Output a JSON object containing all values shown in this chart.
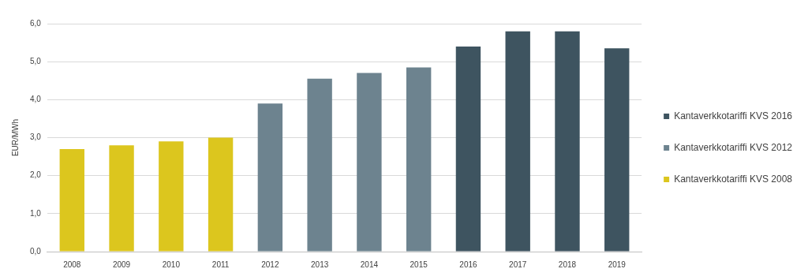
{
  "chart_data": {
    "type": "bar",
    "ylabel": "EUR/MWh",
    "categories": [
      "2008",
      "2009",
      "2010",
      "2011",
      "2012",
      "2013",
      "2014",
      "2015",
      "2016",
      "2017",
      "2018",
      "2019"
    ],
    "series": [
      {
        "name": "Kantaverkkotariffi KVS 2008",
        "color": "#dcc61e",
        "values": [
          2.7,
          2.8,
          2.9,
          3.0,
          null,
          null,
          null,
          null,
          null,
          null,
          null,
          null
        ]
      },
      {
        "name": "Kantaverkkotariffi KVS 2012",
        "color": "#6d838f",
        "values": [
          null,
          null,
          null,
          null,
          3.9,
          4.55,
          4.7,
          4.85,
          null,
          null,
          null,
          null
        ]
      },
      {
        "name": "Kantaverkkotariffi KVS 2016",
        "color": "#3e5460",
        "values": [
          null,
          null,
          null,
          null,
          null,
          null,
          null,
          null,
          5.4,
          5.8,
          5.8,
          5.35
        ]
      }
    ],
    "stacked": true,
    "ylim": [
      0,
      6
    ],
    "yticks": [
      {
        "value": 0,
        "label": "0,0"
      },
      {
        "value": 1,
        "label": "1,0"
      },
      {
        "value": 2,
        "label": "2,0"
      },
      {
        "value": 3,
        "label": "3,0"
      },
      {
        "value": 4,
        "label": "4,0"
      },
      {
        "value": 5,
        "label": "5,0"
      },
      {
        "value": 6,
        "label": "6,0"
      }
    ],
    "grid": "y",
    "legend": "right"
  }
}
